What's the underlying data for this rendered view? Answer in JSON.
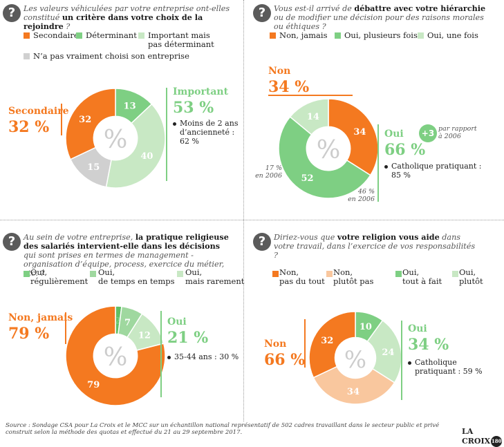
{
  "colors": {
    "orange": "#f47920",
    "green": "#7ecf83",
    "light_green": "#c8e8c4",
    "gray": "#d0d0d0",
    "pale_orange": "#f9c79e",
    "percent_watermark": "#cccccc"
  },
  "center_symbol": "%",
  "chart_data": [
    {
      "type": "pie",
      "donut": true,
      "question_pre": "Les valeurs véhiculées par votre entreprise ont-elles constitué ",
      "question_bold": "un critère dans votre choix de la rejoindre",
      "question_post": " ?",
      "legend": [
        {
          "label": "Secondaire",
          "color": "#f47920"
        },
        {
          "label": "Déterminant",
          "color": "#7ecf83"
        },
        {
          "label": "Important mais\npas déterminant",
          "color": "#c8e8c4"
        },
        {
          "label": "N’a pas vraiment choisi son entreprise",
          "color": "#d0d0d0"
        }
      ],
      "slices": [
        {
          "label": "Déterminant",
          "value": 13,
          "color": "#7ecf83",
          "text_color": "#ffffff"
        },
        {
          "label": "Important mais pas déterminant",
          "value": 40,
          "color": "#c8e8c4",
          "text_color": "#ffffff"
        },
        {
          "label": "N’a pas vraiment choisi son entreprise",
          "value": 15,
          "color": "#d0d0d0",
          "text_color": "#ffffff"
        },
        {
          "label": "Secondaire",
          "value": 32,
          "color": "#f47920",
          "text_color": "#ffffff"
        }
      ],
      "left_callout": {
        "title": "Secondaire",
        "value": "32 %",
        "color": "#f47920"
      },
      "right_callout": {
        "title": "Important",
        "value": "53 %",
        "color": "#7ecf83"
      },
      "note": "Moins de 2 ans\nd’ancienneté :\n62 %"
    },
    {
      "type": "pie",
      "donut": true,
      "question_pre": "Vous est-il arrivé de ",
      "question_bold": "débattre avec votre hiérarchie",
      "question_post": " ou de modifier une décision pour des raisons morales ou éthiques ?",
      "legend": [
        {
          "label": "Non, jamais",
          "color": "#f47920"
        },
        {
          "label": "Oui, plusieurs fois",
          "color": "#7ecf83"
        },
        {
          "label": "Oui, une fois",
          "color": "#c8e8c4"
        }
      ],
      "slices": [
        {
          "label": "Non, jamais",
          "value": 34,
          "color": "#f47920",
          "text_color": "#ffffff"
        },
        {
          "label": "Oui, plusieurs fois",
          "value": 52,
          "color": "#7ecf83",
          "text_color": "#ffffff"
        },
        {
          "label": "Oui, une fois",
          "value": 14,
          "color": "#c8e8c4",
          "text_color": "#ffffff"
        }
      ],
      "left_callout": {
        "title": "Non",
        "value": "34 %",
        "color": "#f47920"
      },
      "right_callout": {
        "title": "Oui",
        "value": "66 %",
        "color": "#7ecf83"
      },
      "plus_badge": "+3",
      "plus_note": "par rapport\nà 2006",
      "annotations": [
        "17 %\nen 2006",
        "46 %\nen 2006"
      ],
      "note": "Catholique pratiquant :\n85 %"
    },
    {
      "type": "pie",
      "donut": true,
      "question_pre": "Au sein de votre entreprise, ",
      "question_bold": "la pratique religieuse des salariés intervient-elle dans les décisions",
      "question_post": " qui sont prises en termes de management - organisation d’équipe, process, exercice du métier, etc. ?",
      "legend": [
        {
          "label": "Oui,\nrégulièrement",
          "color": "#7ecf83"
        },
        {
          "label": "Oui,\nde temps en temps",
          "color": "#9fd89f"
        },
        {
          "label": "Oui,\nmais rarement",
          "color": "#c8e8c4"
        }
      ],
      "slices": [
        {
          "label": "Oui, régulièrement",
          "value": 2,
          "color": "#5fbf65",
          "text_color": "#7ecf83"
        },
        {
          "label": "Oui, de temps en temps",
          "value": 7,
          "color": "#9fd89f",
          "text_color": "#ffffff"
        },
        {
          "label": "Oui, mais rarement",
          "value": 12,
          "color": "#c8e8c4",
          "text_color": "#ffffff"
        },
        {
          "label": "Non, jamais",
          "value": 79,
          "color": "#f47920",
          "text_color": "#ffffff"
        }
      ],
      "left_callout": {
        "title": "Non, jamais",
        "value": "79 %",
        "color": "#f47920"
      },
      "right_callout": {
        "title": "Oui",
        "value": "21 %",
        "color": "#7ecf83"
      },
      "note": "35-44 ans : 30 %"
    },
    {
      "type": "pie",
      "donut": true,
      "question_pre": "Diriez-vous que ",
      "question_bold": "votre religion vous aide",
      "question_post": " dans votre travail, dans l’exercice de vos responsabilités ?",
      "legend": [
        {
          "label": "Non,\npas du tout",
          "color": "#f47920"
        },
        {
          "label": "Non,\nplutôt pas",
          "color": "#f9c79e"
        },
        {
          "label": "Oui,\ntout à fait",
          "color": "#7ecf83"
        },
        {
          "label": "Oui,\nplutôt",
          "color": "#c8e8c4"
        }
      ],
      "slices": [
        {
          "label": "Oui, tout à fait",
          "value": 10,
          "color": "#7ecf83",
          "text_color": "#ffffff"
        },
        {
          "label": "Oui, plutôt",
          "value": 24,
          "color": "#c8e8c4",
          "text_color": "#ffffff"
        },
        {
          "label": "Non, plutôt pas",
          "value": 34,
          "color": "#f9c79e",
          "text_color": "#ffffff"
        },
        {
          "label": "Non, pas du tout",
          "value": 32,
          "color": "#f47920",
          "text_color": "#ffffff"
        }
      ],
      "left_callout": {
        "title": "Non",
        "value": "66 %",
        "color": "#f47920"
      },
      "right_callout": {
        "title": "Oui",
        "value": "34 %",
        "color": "#7ecf83"
      },
      "note": "Catholique\npratiquant : 59 %"
    }
  ],
  "footer": "Source : Sondage CSA pour La Croix et le MCC sur un échantillon national représentatif de 502 cadres travaillant dans le secteur public et privé construit selon la méthode des quotas et effectué du 21 au 29 septembre 2017.",
  "logo": {
    "name": "LA CROIX",
    "badge": "180"
  }
}
